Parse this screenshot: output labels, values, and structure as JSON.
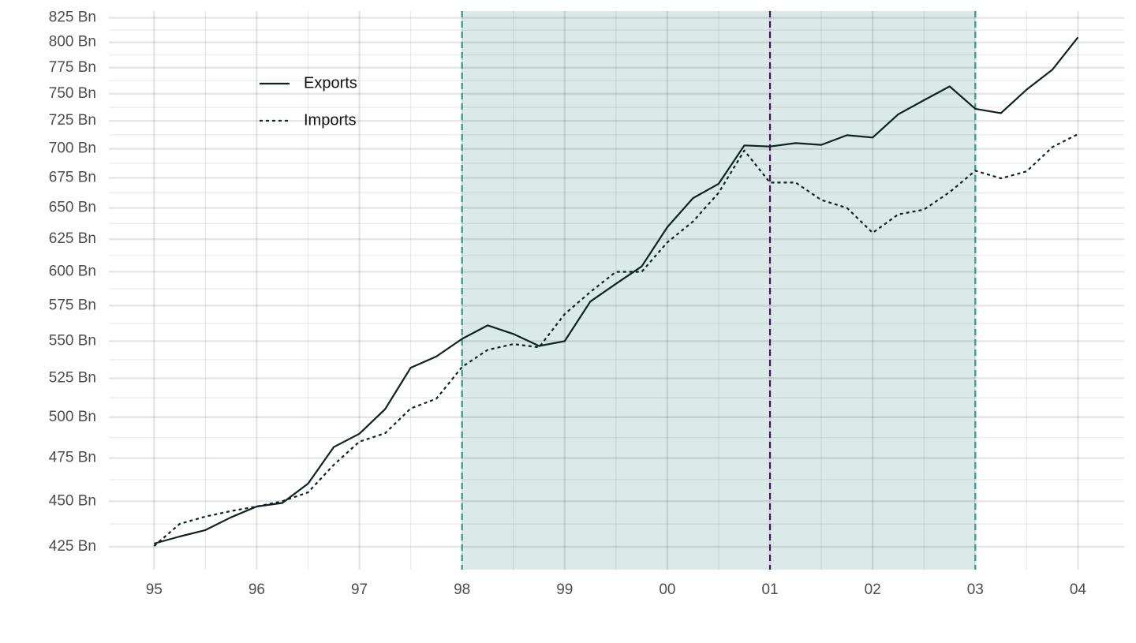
{
  "chart_data": {
    "type": "line",
    "x": [
      1995,
      1995.25,
      1995.5,
      1995.75,
      1996,
      1996.25,
      1996.5,
      1996.75,
      1997,
      1997.25,
      1997.5,
      1997.75,
      1998,
      1998.25,
      1998.5,
      1998.75,
      1999,
      1999.25,
      1999.5,
      1999.75,
      2000,
      2000.25,
      2000.5,
      2000.75,
      2001,
      2001.25,
      2001.5,
      2001.75,
      2002,
      2002.25,
      2002.5,
      2002.75,
      2003,
      2003.25,
      2003.5,
      2003.75,
      2004
    ],
    "series": [
      {
        "name": "Exports",
        "color": "#0f2222",
        "linestyle": "solid",
        "values": [
          426.7,
          430.5,
          434,
          441,
          447,
          449,
          460,
          481.6,
          489.7,
          505,
          532,
          539.5,
          551.6,
          561,
          555,
          546.7,
          550,
          578,
          591,
          604,
          634.5,
          658,
          670,
          703,
          702,
          705,
          703.5,
          712,
          710,
          731,
          744,
          757,
          736,
          732,
          754,
          773,
          805
        ]
      },
      {
        "name": "Imports",
        "color": "#0f2222",
        "linestyle": "dotted",
        "values": [
          425.4,
          437.4,
          441.4,
          444.5,
          447,
          450,
          455,
          471,
          484.9,
          490,
          505.5,
          511.7,
          532.5,
          544,
          548,
          545.8,
          569,
          585,
          600,
          600,
          622.5,
          639,
          662.5,
          698.5,
          671,
          671,
          656.5,
          650,
          630,
          644.8,
          648.6,
          663,
          681,
          674.5,
          680.5,
          701.5,
          713
        ]
      }
    ],
    "xlim": [
      1994.56,
      2004.45
    ],
    "xticks": [
      {
        "value": 1995,
        "label": "95"
      },
      {
        "value": 1996,
        "label": "96"
      },
      {
        "value": 1997,
        "label": "97"
      },
      {
        "value": 1998,
        "label": "98"
      },
      {
        "value": 1999,
        "label": "99"
      },
      {
        "value": 2000,
        "label": "00"
      },
      {
        "value": 2001,
        "label": "01"
      },
      {
        "value": 2002,
        "label": "02"
      },
      {
        "value": 2003,
        "label": "03"
      },
      {
        "value": 2004,
        "label": "04"
      }
    ],
    "ylim": [
      413,
      832
    ],
    "ylog": true,
    "yticks": [
      {
        "value": 425,
        "label": "425 Bn"
      },
      {
        "value": 450,
        "label": "450 Bn"
      },
      {
        "value": 475,
        "label": "475 Bn"
      },
      {
        "value": 500,
        "label": "500 Bn"
      },
      {
        "value": 525,
        "label": "525 Bn"
      },
      {
        "value": 550,
        "label": "550 Bn"
      },
      {
        "value": 575,
        "label": "575 Bn"
      },
      {
        "value": 600,
        "label": "600 Bn"
      },
      {
        "value": 625,
        "label": "625 Bn"
      },
      {
        "value": 650,
        "label": "650 Bn"
      },
      {
        "value": 675,
        "label": "675 Bn"
      },
      {
        "value": 700,
        "label": "700 Bn"
      },
      {
        "value": 725,
        "label": "725 Bn"
      },
      {
        "value": 750,
        "label": "750 Bn"
      },
      {
        "value": 775,
        "label": "775 Bn"
      },
      {
        "value": 800,
        "label": "800 Bn"
      },
      {
        "value": 825,
        "label": "825 Bn"
      }
    ],
    "grid": true,
    "shaded_span": {
      "start": 1998,
      "end": 2003,
      "color": "#dbe9e8"
    },
    "vlines": [
      {
        "x": 1998,
        "color": "#2e9a92"
      },
      {
        "x": 2001,
        "color": "#40185c"
      },
      {
        "x": 2003,
        "color": "#2e9a92"
      }
    ],
    "legend": "top-left"
  }
}
